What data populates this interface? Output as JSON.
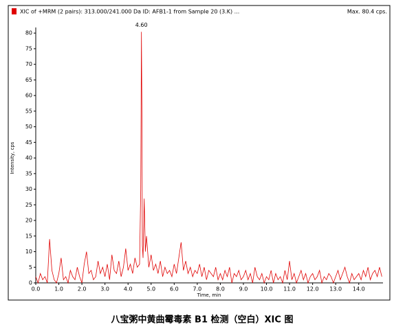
{
  "chart_data": {
    "type": "line",
    "title": "XIC of +MRM (2 pairs): 313.000/241.000 Da ID: AFB1-1 from Sample 20 (3.K) ...",
    "max_label": "Max. 80.4 cps.",
    "peak_label": "4.60",
    "xlabel": "Time, min",
    "ylabel": "Intensity, cps",
    "caption": "八宝粥中黄曲霉毒素 B1 检测（空白）XIC 图",
    "color": "#e00000",
    "xlim": [
      0,
      15.05
    ],
    "ylim": [
      0,
      81.8
    ],
    "xticks": [
      {
        "value": 0,
        "label": "0.0"
      },
      {
        "value": 1,
        "label": "1.0"
      },
      {
        "value": 2,
        "label": "2.0"
      },
      {
        "value": 3,
        "label": "3.0"
      },
      {
        "value": 4,
        "label": "4.0"
      },
      {
        "value": 5,
        "label": "5.0"
      },
      {
        "value": 6,
        "label": "6.0"
      },
      {
        "value": 7,
        "label": "7.0"
      },
      {
        "value": 8,
        "label": "8.0"
      },
      {
        "value": 9,
        "label": "9.0"
      },
      {
        "value": 10,
        "label": "10.0"
      },
      {
        "value": 11,
        "label": "11.0"
      },
      {
        "value": 12,
        "label": "12.0"
      },
      {
        "value": 13,
        "label": "13.0"
      },
      {
        "value": 14,
        "label": "14.0"
      }
    ],
    "yticks": [
      0,
      5,
      10,
      15,
      20,
      25,
      30,
      35,
      40,
      45,
      50,
      55,
      60,
      65,
      70,
      75,
      80
    ],
    "x": [
      0,
      0.1,
      0.2,
      0.3,
      0.4,
      0.5,
      0.6,
      0.7,
      0.8,
      0.9,
      1.0,
      1.1,
      1.2,
      1.3,
      1.4,
      1.5,
      1.6,
      1.7,
      1.8,
      1.9,
      2.0,
      2.1,
      2.2,
      2.3,
      2.4,
      2.5,
      2.6,
      2.7,
      2.8,
      2.9,
      3.0,
      3.1,
      3.2,
      3.3,
      3.4,
      3.5,
      3.6,
      3.7,
      3.8,
      3.9,
      4.0,
      4.1,
      4.2,
      4.3,
      4.4,
      4.5,
      4.55,
      4.58,
      4.6,
      4.62,
      4.65,
      4.7,
      4.75,
      4.8,
      4.9,
      5.0,
      5.1,
      5.2,
      5.3,
      5.4,
      5.5,
      5.6,
      5.7,
      5.8,
      5.9,
      6.0,
      6.1,
      6.2,
      6.3,
      6.4,
      6.5,
      6.6,
      6.7,
      6.8,
      6.9,
      7.0,
      7.1,
      7.2,
      7.3,
      7.4,
      7.5,
      7.6,
      7.7,
      7.8,
      7.9,
      8.0,
      8.1,
      8.2,
      8.3,
      8.4,
      8.5,
      8.6,
      8.7,
      8.8,
      8.9,
      9.0,
      9.1,
      9.2,
      9.3,
      9.4,
      9.5,
      9.6,
      9.7,
      9.8,
      9.9,
      10.0,
      10.1,
      10.2,
      10.3,
      10.4,
      10.5,
      10.6,
      10.7,
      10.8,
      10.9,
      11.0,
      11.1,
      11.2,
      11.3,
      11.4,
      11.5,
      11.6,
      11.7,
      11.8,
      11.9,
      12.0,
      12.1,
      12.2,
      12.3,
      12.4,
      12.5,
      12.6,
      12.7,
      12.8,
      12.9,
      13.0,
      13.1,
      13.2,
      13.3,
      13.4,
      13.5,
      13.6,
      13.7,
      13.8,
      13.9,
      14.0,
      14.1,
      14.2,
      14.3,
      14.4,
      14.5,
      14.6,
      14.7,
      14.8,
      14.9,
      15.0
    ],
    "values": [
      2,
      0,
      3,
      1,
      2,
      0,
      14,
      4,
      1,
      0,
      3,
      8,
      1,
      2,
      0,
      4,
      2,
      1,
      5,
      2,
      0,
      6,
      10,
      3,
      4,
      1,
      2,
      7,
      3,
      5,
      2,
      6,
      1,
      9,
      4,
      3,
      7,
      2,
      5,
      11,
      4,
      6,
      3,
      8,
      5,
      6,
      30,
      80.4,
      57,
      12,
      8,
      27,
      10,
      15,
      5,
      9,
      4,
      6,
      3,
      7,
      2,
      5,
      3,
      4,
      2,
      6,
      3,
      8,
      13,
      4,
      7,
      3,
      5,
      2,
      4,
      3,
      6,
      2,
      5,
      1,
      4,
      3,
      2,
      5,
      1,
      3,
      1,
      4,
      2,
      5,
      0,
      3,
      2,
      4,
      1,
      2,
      4,
      1,
      3,
      0,
      5,
      2,
      1,
      3,
      0,
      2,
      1,
      4,
      0,
      3,
      1,
      2,
      0,
      4,
      1,
      7,
      1,
      3,
      0,
      2,
      4,
      1,
      3,
      0,
      2,
      3,
      1,
      2,
      4,
      0,
      2,
      1,
      3,
      2,
      0,
      2,
      4,
      1,
      3,
      5,
      2,
      0,
      3,
      1,
      2,
      3,
      1,
      4,
      2,
      5,
      1,
      3,
      4,
      2,
      5,
      2
    ]
  }
}
